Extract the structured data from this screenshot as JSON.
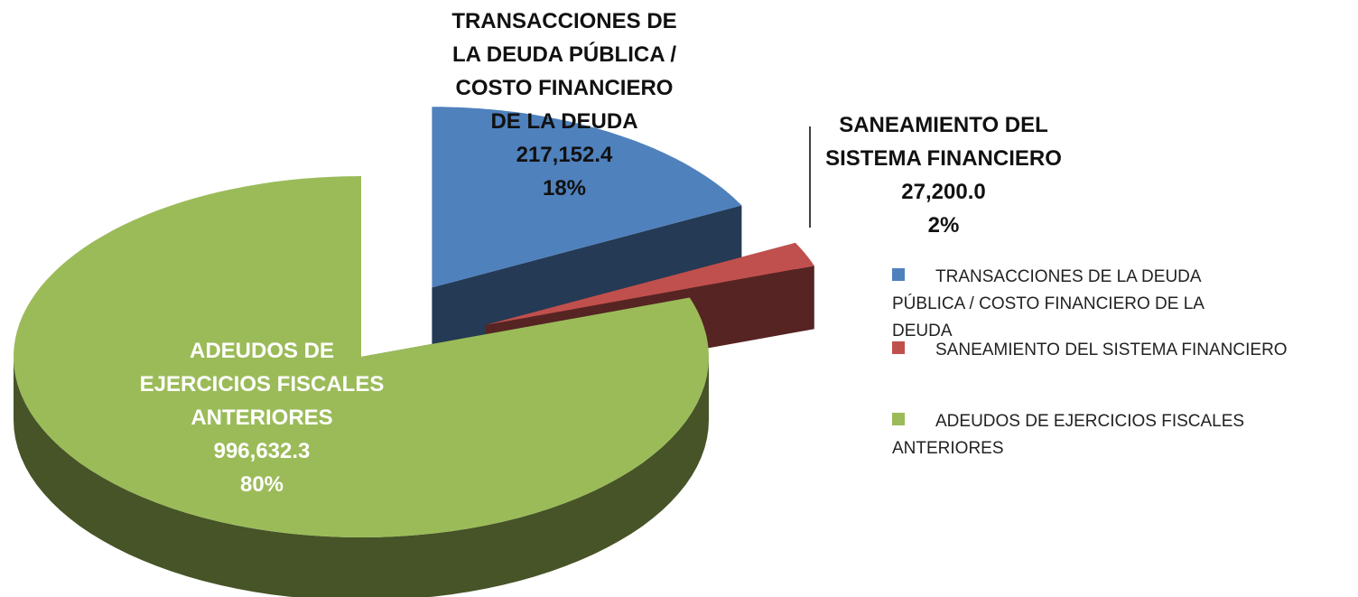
{
  "chart_data": {
    "type": "pie",
    "categories": [
      "TRANSACCIONES DE LA DEUDA PÚBLICA / COSTO FINANCIERO DE LA DEUDA",
      "SANEAMIENTO DEL SISTEMA FINANCIERO",
      "ADEUDOS DE EJERCICIOS FISCALES ANTERIORES"
    ],
    "values": [
      217152.4,
      27200.0,
      996632.3
    ],
    "value_labels": [
      "217,152.4",
      "27,200.0",
      "996,632.3"
    ],
    "percents": [
      18,
      2,
      80
    ],
    "percent_labels": [
      "18%",
      "2%",
      "80%"
    ],
    "colors": [
      "#4f81bd",
      "#c0504d",
      "#9bbb59"
    ],
    "legend": "right"
  }
}
